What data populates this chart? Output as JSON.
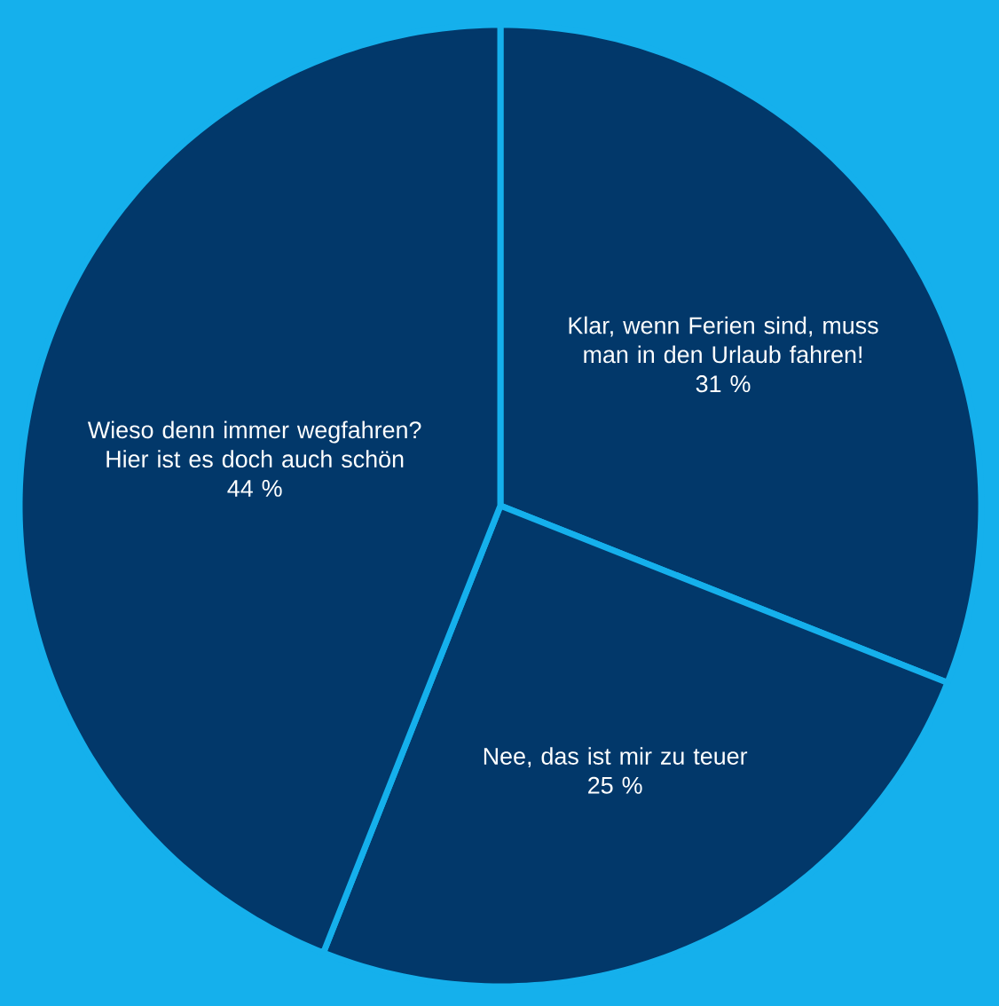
{
  "chart_data": {
    "type": "pie",
    "categories": [
      "Klar, wenn Ferien sind, muss man in den Urlaub fahren!",
      "Nee, das ist mir zu teuer",
      "Wieso denn immer wegfahren? Hier ist es doch auch schön"
    ],
    "values": [
      31,
      25,
      44
    ],
    "value_labels": [
      "31 %",
      "25 %",
      "44 %"
    ],
    "colors": [
      "#02386a",
      "#02386a",
      "#02386a"
    ]
  }
}
